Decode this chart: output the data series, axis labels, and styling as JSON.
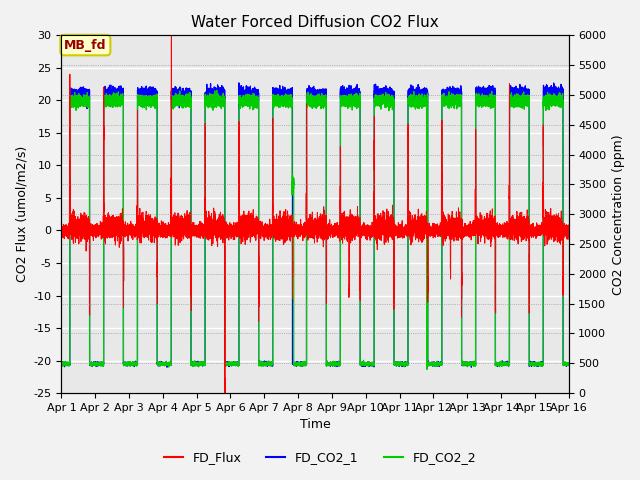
{
  "title": "Water Forced Diffusion CO2 Flux",
  "xlabel": "Time",
  "ylabel_left": "CO2 Flux (umol/m2/s)",
  "ylabel_right": "CO2 Concentration (ppm)",
  "ylim_left": [
    -25,
    30
  ],
  "ylim_right": [
    0,
    6000
  ],
  "yticks_left": [
    -25,
    -20,
    -15,
    -10,
    -5,
    0,
    5,
    10,
    15,
    20,
    25,
    30
  ],
  "yticks_right": [
    0,
    500,
    1000,
    1500,
    2000,
    2500,
    3000,
    3500,
    4000,
    4500,
    5000,
    5500,
    6000
  ],
  "xtick_labels": [
    "Apr 1",
    "Apr 2",
    "Apr 3",
    "Apr 4",
    "Apr 5",
    "Apr 6",
    "Apr 7",
    "Apr 8",
    "Apr 9",
    "Apr 10",
    "Apr 11",
    "Apr 12",
    "Apr 13",
    "Apr 14",
    "Apr 15",
    "Apr 16"
  ],
  "color_flux": "#ff0000",
  "color_co2_1": "#0000ff",
  "color_co2_2": "#00cc00",
  "legend_labels": [
    "FD_Flux",
    "FD_CO2_1",
    "FD_CO2_2"
  ],
  "annotation_text": "MB_fd",
  "annotation_box_facecolor": "#ffffcc",
  "annotation_box_edgecolor": "#cccc00",
  "plot_bg_color": "#e8e8e8",
  "fig_bg_color": "#f2f2f2",
  "grid_color": "#ffffff",
  "title_fontsize": 11,
  "label_fontsize": 9,
  "tick_fontsize": 8,
  "legend_fontsize": 9
}
